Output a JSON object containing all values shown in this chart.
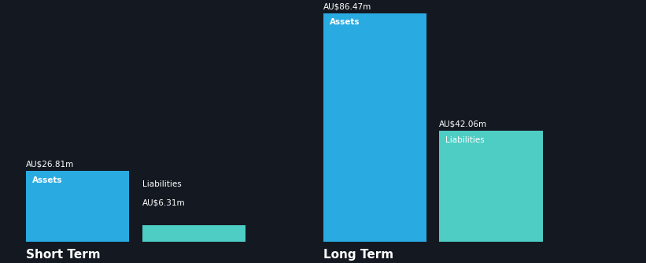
{
  "background_color": "#141921",
  "bar_color_assets": "#29ABE2",
  "bar_color_liabilities": "#4ECDC4",
  "text_color_white": "#FFFFFF",
  "text_color_dark": "#141921",
  "short_term_assets": 26.81,
  "short_term_liabilities": 6.31,
  "long_term_assets": 86.47,
  "long_term_liabilities": 42.06,
  "short_term_label": "Short Term",
  "long_term_label": "Long Term",
  "assets_label": "Assets",
  "liabilities_label": "Liabilities",
  "figsize": [
    8.21,
    3.34
  ],
  "dpi": 100
}
